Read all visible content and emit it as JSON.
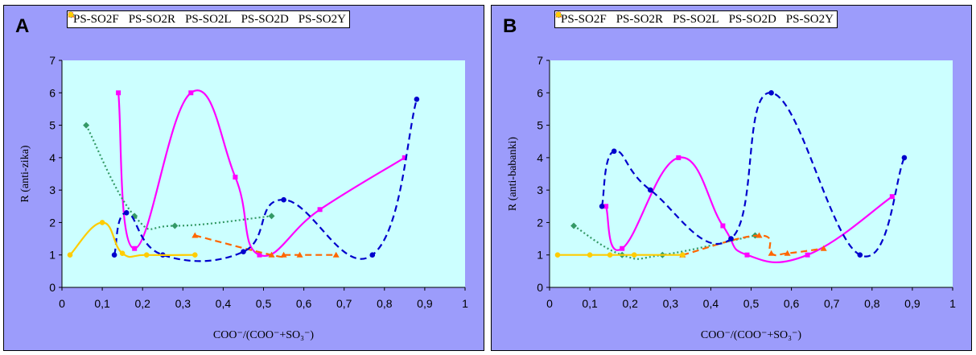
{
  "chart_data": [
    {
      "type": "line",
      "panel_label": "A",
      "xlabel": "COO⁻/(COO⁻+SO₃⁻)",
      "ylabel": "R (anti-zika)",
      "xlim": [
        0,
        1
      ],
      "ylim": [
        0,
        7
      ],
      "x_ticks": [
        "0",
        "0,1",
        "0,2",
        "0,3",
        "0,4",
        "0,5",
        "0,6",
        "0,7",
        "0,8",
        "0,9",
        "1"
      ],
      "y_ticks": [
        "0",
        "1",
        "2",
        "3",
        "4",
        "5",
        "6",
        "7"
      ],
      "legend_position": "top",
      "background_color": "#ccffff",
      "grid": false,
      "series": [
        {
          "name": "PS-SO2F",
          "color": "#ff00ff",
          "marker": "square",
          "line": "solid",
          "x": [
            0.14,
            0.18,
            0.32,
            0.43,
            0.49,
            0.64,
            0.85
          ],
          "y": [
            6.0,
            1.2,
            6.0,
            3.4,
            1.0,
            2.4,
            4.0
          ]
        },
        {
          "name": "PS-SO2R",
          "color": "#339966",
          "marker": "diamond",
          "line": "dotted",
          "x": [
            0.06,
            0.18,
            0.28,
            0.52
          ],
          "y": [
            5.0,
            2.2,
            1.9,
            2.2
          ]
        },
        {
          "name": "PS-SO2L",
          "color": "#ff6600",
          "marker": "triangle",
          "line": "dashed",
          "x": [
            0.33,
            0.52,
            0.55,
            0.59,
            0.68
          ],
          "y": [
            1.6,
            1.0,
            1.0,
            1.0,
            1.0
          ]
        },
        {
          "name": "PS-SO2D",
          "color": "#0000cc",
          "marker": "circle",
          "line": "dashed",
          "x": [
            0.13,
            0.16,
            0.25,
            0.45,
            0.55,
            0.77,
            0.88
          ],
          "y": [
            1.0,
            2.3,
            1.0,
            1.1,
            2.7,
            1.0,
            5.8
          ]
        },
        {
          "name": "PS-SO2Y",
          "color": "#ffcc00",
          "marker": "circle",
          "line": "solid",
          "x": [
            0.02,
            0.1,
            0.15,
            0.21,
            0.33
          ],
          "y": [
            1.0,
            2.0,
            1.05,
            1.0,
            1.0
          ]
        }
      ]
    },
    {
      "type": "line",
      "panel_label": "B",
      "xlabel": "COO⁻/(COO⁻+SO₃⁻)",
      "ylabel": "R (anti-babanki)",
      "xlim": [
        0,
        1
      ],
      "ylim": [
        0,
        7
      ],
      "x_ticks": [
        "0",
        "0,1",
        "0,2",
        "0,3",
        "0,4",
        "0,5",
        "0,6",
        "0,7",
        "0,8",
        "0,9",
        "1"
      ],
      "y_ticks": [
        "0",
        "1",
        "2",
        "3",
        "4",
        "5",
        "6",
        "7"
      ],
      "legend_position": "top",
      "background_color": "#ccffff",
      "grid": false,
      "series": [
        {
          "name": "PS-SO2F",
          "color": "#ff00ff",
          "marker": "square",
          "line": "solid",
          "x": [
            0.14,
            0.18,
            0.32,
            0.43,
            0.49,
            0.64,
            0.85
          ],
          "y": [
            2.5,
            1.2,
            4.0,
            1.9,
            1.0,
            1.0,
            2.8
          ]
        },
        {
          "name": "PS-SO2R",
          "color": "#339966",
          "marker": "diamond",
          "line": "dotted",
          "x": [
            0.06,
            0.18,
            0.28,
            0.51
          ],
          "y": [
            1.9,
            1.0,
            1.0,
            1.6
          ]
        },
        {
          "name": "PS-SO2L",
          "color": "#ff6600",
          "marker": "triangle",
          "line": "dashed",
          "x": [
            0.33,
            0.52,
            0.55,
            0.59,
            0.68
          ],
          "y": [
            1.0,
            1.6,
            1.05,
            1.05,
            1.2
          ]
        },
        {
          "name": "PS-SO2D",
          "color": "#0000cc",
          "marker": "circle",
          "line": "dashed",
          "x": [
            0.13,
            0.16,
            0.25,
            0.45,
            0.55,
            0.77,
            0.88
          ],
          "y": [
            2.5,
            4.2,
            3.0,
            1.5,
            6.0,
            1.0,
            4.0
          ]
        },
        {
          "name": "PS-SO2Y",
          "color": "#ffcc00",
          "marker": "circle",
          "line": "solid",
          "x": [
            0.02,
            0.1,
            0.15,
            0.21,
            0.33
          ],
          "y": [
            1.0,
            1.0,
            1.0,
            1.0,
            1.0
          ]
        }
      ]
    }
  ]
}
